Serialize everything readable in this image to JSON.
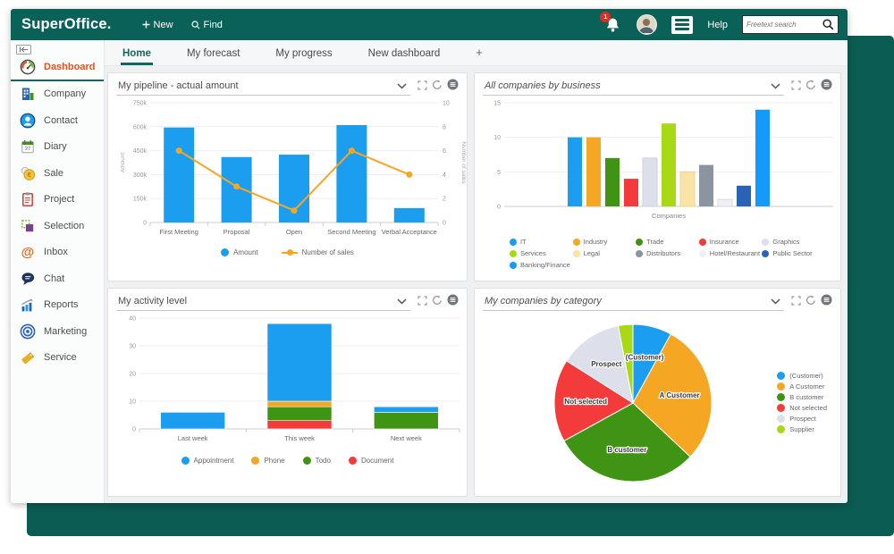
{
  "header": {
    "logo": "SuperOffice.",
    "new_label": "New",
    "find_label": "Find",
    "help_label": "Help",
    "search_placeholder": "Freetext search",
    "notification_count": "1"
  },
  "sidebar": {
    "diary_day": "27",
    "items": [
      {
        "label": "Dashboard",
        "icon": "dashboard-gauge-icon",
        "active": true
      },
      {
        "label": "Company",
        "icon": "company-icon"
      },
      {
        "label": "Contact",
        "icon": "contact-icon"
      },
      {
        "label": "Diary",
        "icon": "diary-calendar-icon"
      },
      {
        "label": "Sale",
        "icon": "sale-coins-icon"
      },
      {
        "label": "Project",
        "icon": "project-clipboard-icon"
      },
      {
        "label": "Selection",
        "icon": "selection-icon"
      },
      {
        "label": "Inbox",
        "icon": "inbox-at-icon"
      },
      {
        "label": "Chat",
        "icon": "chat-bubble-icon"
      },
      {
        "label": "Reports",
        "icon": "reports-chart-icon"
      },
      {
        "label": "Marketing",
        "icon": "marketing-target-icon"
      },
      {
        "label": "Service",
        "icon": "service-ticket-icon"
      }
    ]
  },
  "tabs": [
    {
      "label": "Home",
      "active": true
    },
    {
      "label": "My forecast"
    },
    {
      "label": "My progress"
    },
    {
      "label": "New dashboard"
    },
    {
      "label": "+"
    }
  ],
  "colors": {
    "header_green": "#0a6157",
    "backdrop_teal": "#0b5c52",
    "accent_teal": "#10695e",
    "active_orange": "#e8501e",
    "blue": "#1b9df0",
    "orange": "#f5a623",
    "green": "#3f9413",
    "red": "#f43b3b",
    "badge_red": "#e02b20"
  },
  "icons": [
    "bell-icon",
    "avatar",
    "menu-burger-icon",
    "search-icon",
    "collapse-sidebar-icon",
    "chevron-down-icon",
    "maximize-icon",
    "refresh-icon",
    "panel-menu-icon"
  ],
  "chart_data": [
    {
      "type": "bar-line-combo",
      "title": "My pipeline - actual amount",
      "title_italic": false,
      "categories": [
        "First Meeting",
        "Proposal",
        "Open",
        "Second Meeting",
        "Verbal Acceptance"
      ],
      "series": [
        {
          "name": "Amount",
          "kind": "bar",
          "color": "#1b9df0",
          "values": [
            595000,
            410000,
            425000,
            610000,
            90000
          ]
        },
        {
          "name": "Number of sales",
          "kind": "line",
          "color": "#f5a623",
          "values": [
            6,
            3,
            1,
            6,
            4
          ]
        }
      ],
      "ylabel_left": "Amount",
      "ylabel_right": "Number of sales",
      "ylim_left": [
        0,
        750000
      ],
      "yticks_left": [
        "0",
        "150k",
        "300k",
        "450k",
        "600k",
        "750k"
      ],
      "ylim_right": [
        0,
        10
      ],
      "yticks_right": [
        "0",
        "2",
        "4",
        "6",
        "8",
        "10"
      ],
      "legend_position": "bottom",
      "grid": true
    },
    {
      "type": "bar",
      "title": "All companies by business",
      "title_italic": true,
      "xlabel": "Companies",
      "ylim": [
        0,
        15
      ],
      "yticks": [
        0,
        5,
        10,
        15
      ],
      "bars": [
        {
          "label": "IT",
          "color": "#1b9df0",
          "value": 10
        },
        {
          "label": "Industry",
          "color": "#f5a623",
          "value": 10
        },
        {
          "label": "Trade",
          "color": "#3f9413",
          "value": 7
        },
        {
          "label": "Insurance",
          "color": "#f43b3b",
          "value": 4
        },
        {
          "label": "Graphics",
          "color": "#dde0eb",
          "value": 7,
          "stroke": "#cfd2de"
        },
        {
          "label": "Services",
          "color": "#a8d816",
          "value": 12
        },
        {
          "label": "Legal",
          "color": "#fae3a6",
          "value": 5,
          "stroke": "#ecd493"
        },
        {
          "label": "Distributors",
          "color": "#8b95a1",
          "value": 6
        },
        {
          "label": "Hotel/Restaurant",
          "color": "#eff0f5",
          "value": 1,
          "stroke": "#d9dae2"
        },
        {
          "label": "Public Sector",
          "color": "#2a63b5",
          "value": 3
        },
        {
          "label": "Banking/Finance",
          "color": "#129bfa",
          "value": 14
        }
      ],
      "legend_columns": [
        [
          "IT",
          "Services",
          "Banking/Finance"
        ],
        [
          "Industry",
          "Legal"
        ],
        [
          "Trade",
          "Distributors"
        ],
        [
          "Insurance",
          "Hotel/Restaurant"
        ],
        [
          "Graphics",
          "Public Sector"
        ]
      ],
      "legend_position": "bottom",
      "grid": true
    },
    {
      "type": "stacked-bar",
      "title": "My activity level",
      "title_italic": false,
      "categories": [
        "Last week",
        "This week",
        "Next week"
      ],
      "series": [
        {
          "name": "Appointment",
          "color": "#1b9df0",
          "values": [
            6,
            28,
            2
          ]
        },
        {
          "name": "Phone",
          "color": "#f5a623",
          "values": [
            0,
            2,
            0
          ]
        },
        {
          "name": "Todo",
          "color": "#3f9413",
          "values": [
            0,
            5,
            6
          ]
        },
        {
          "name": "Document",
          "color": "#f43b3b",
          "values": [
            0,
            3,
            0
          ]
        }
      ],
      "stack_order_bottom_to_top": [
        "Document",
        "Todo",
        "Phone",
        "Appointment"
      ],
      "ylim": [
        0,
        40
      ],
      "yticks": [
        0,
        10,
        20,
        30,
        40
      ],
      "legend_position": "bottom",
      "grid": true
    },
    {
      "type": "pie",
      "title": "My companies by category",
      "title_italic": true,
      "slices": [
        {
          "label": "(Customer)",
          "color": "#1b9df0",
          "pct": 8,
          "show_label": true
        },
        {
          "label": "A Customer",
          "color": "#f5a623",
          "pct": 29,
          "show_label": true
        },
        {
          "label": "B customer",
          "color": "#3f9413",
          "pct": 30,
          "show_label": true
        },
        {
          "label": "Not selected",
          "color": "#f43b3b",
          "pct": 17,
          "show_label": true
        },
        {
          "label": "Prospect",
          "color": "#dde0eb",
          "pct": 13,
          "show_label": true
        },
        {
          "label": "Supplier",
          "color": "#a8d816",
          "pct": 3,
          "show_label": false
        }
      ],
      "legend_position": "right",
      "grid": false
    }
  ]
}
